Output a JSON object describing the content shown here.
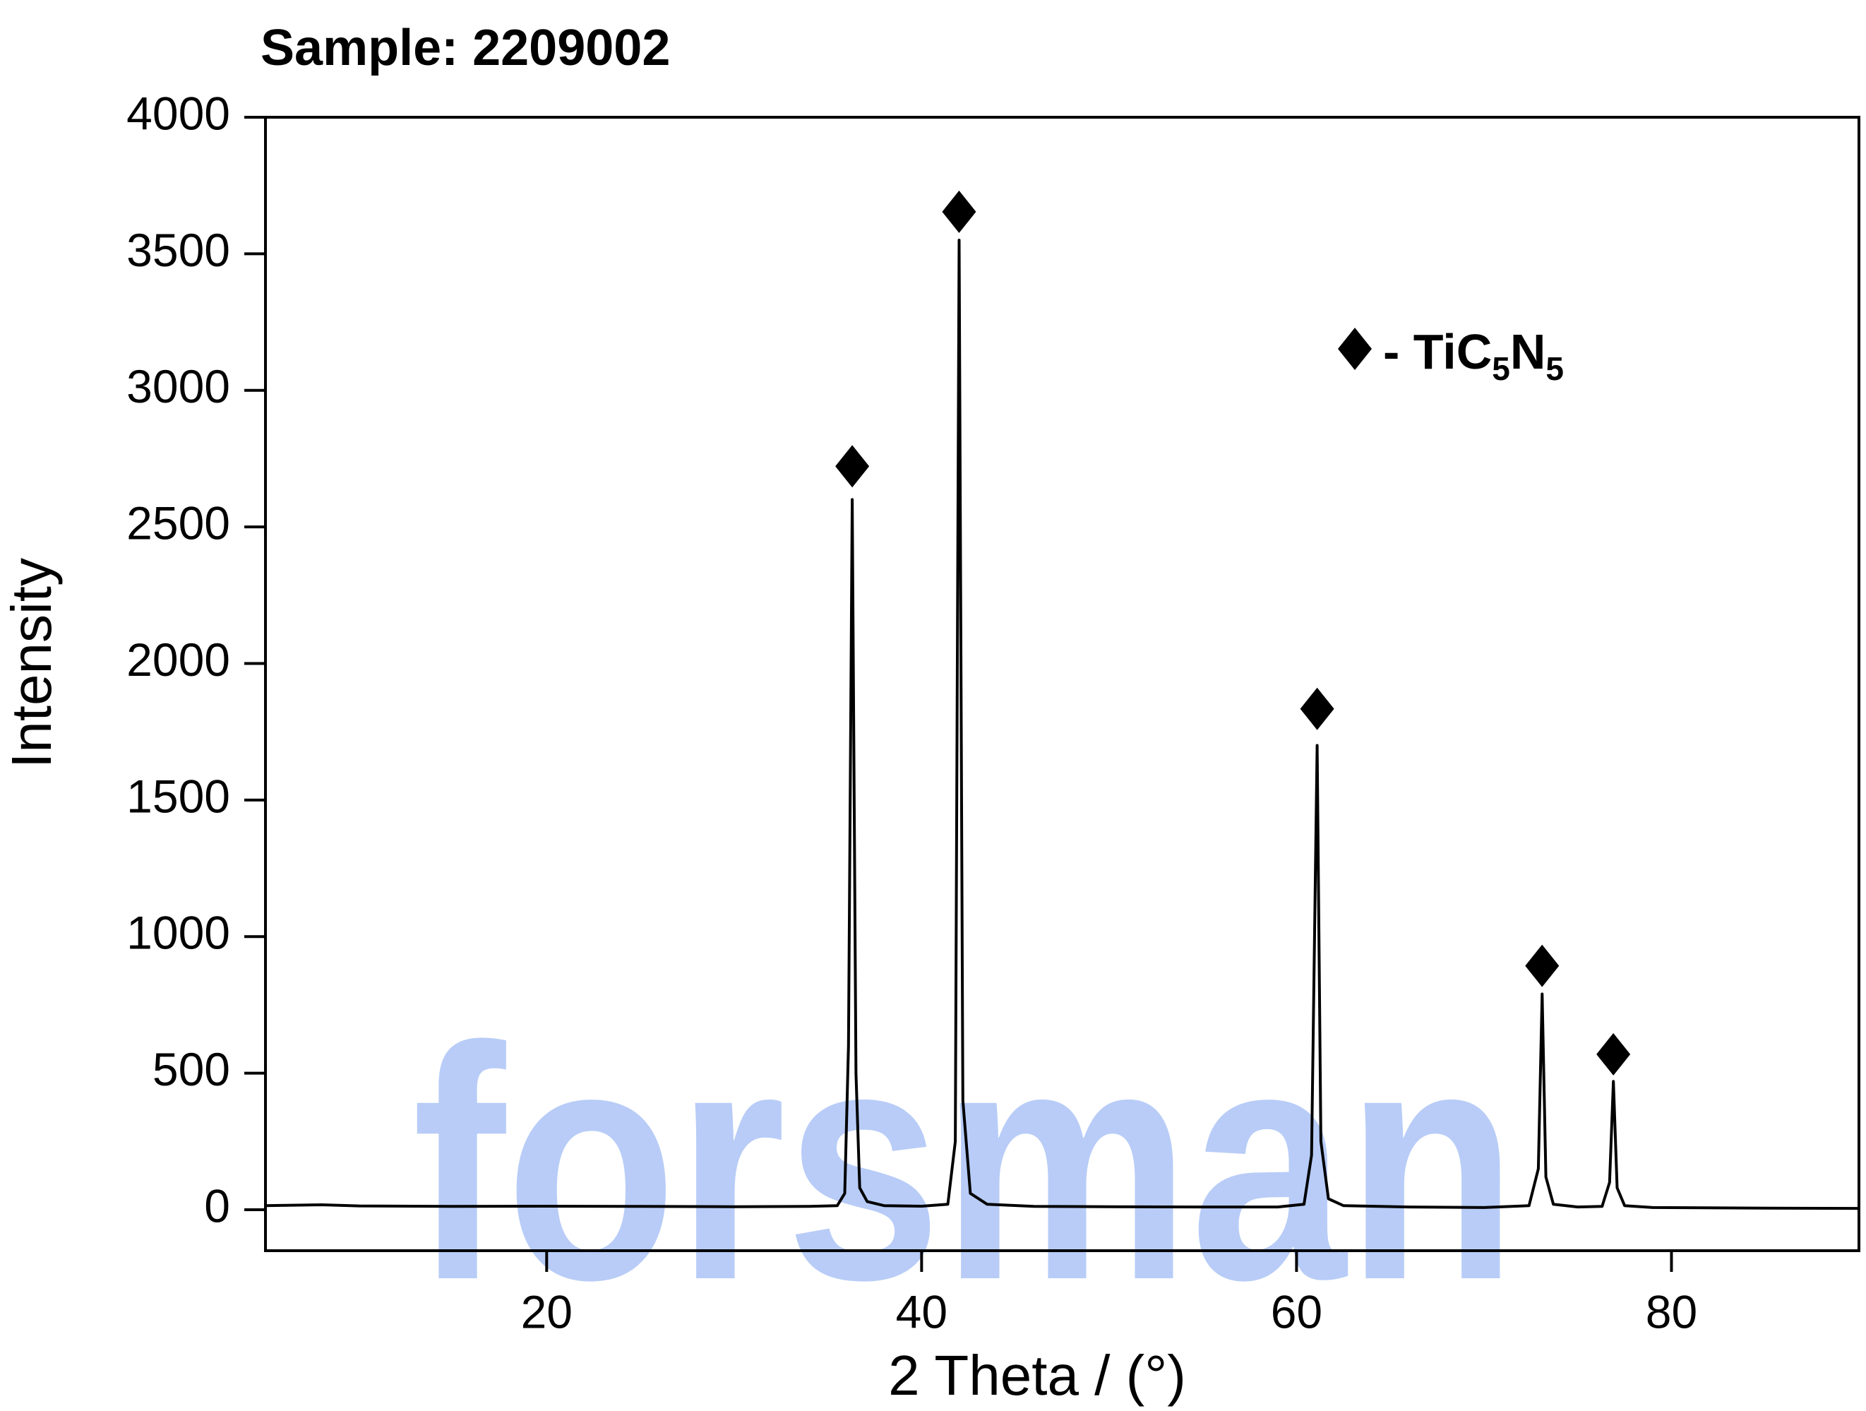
{
  "chart_data": {
    "type": "line",
    "title": "Sample: 2209002",
    "xlabel": "2 Theta / (°)",
    "ylabel": "Intensity",
    "watermark": "forsman",
    "xlim": [
      5,
      90
    ],
    "xticks": [
      20,
      40,
      60,
      80
    ],
    "ylim": [
      -150,
      4000
    ],
    "yticks": [
      0,
      500,
      1000,
      1500,
      2000,
      2500,
      3000,
      3500,
      4000
    ],
    "series": [
      {
        "color": "#000000",
        "x": [
          5,
          8,
          10,
          15,
          20,
          25,
          30,
          34,
          35.5,
          35.9,
          36.1,
          36.3,
          36.5,
          36.7,
          37.1,
          38,
          40,
          41.4,
          41.8,
          42.0,
          42.2,
          42.6,
          43.5,
          46,
          50,
          55,
          59,
          60.4,
          60.8,
          61.1,
          61.3,
          61.7,
          62.5,
          66,
          70,
          72.4,
          72.9,
          73.1,
          73.3,
          73.7,
          75,
          76.3,
          76.7,
          76.9,
          77.1,
          77.5,
          79,
          85,
          90
        ],
        "values": [
          15,
          18,
          14,
          12,
          13,
          12,
          11,
          12,
          15,
          60,
          600,
          2600,
          500,
          80,
          30,
          15,
          13,
          20,
          250,
          3550,
          400,
          60,
          20,
          12,
          11,
          10,
          10,
          20,
          200,
          1700,
          250,
          40,
          15,
          10,
          8,
          15,
          150,
          790,
          120,
          20,
          10,
          12,
          100,
          470,
          80,
          15,
          8,
          6,
          5
        ]
      },
      {
        "type": "scatter",
        "name": "- TiC5N5",
        "color": "#000000",
        "x": [
          36.3,
          42.0,
          61.1,
          73.1,
          76.9
        ],
        "values": [
          2722,
          3654,
          1834,
          893,
          569
        ]
      }
    ]
  }
}
